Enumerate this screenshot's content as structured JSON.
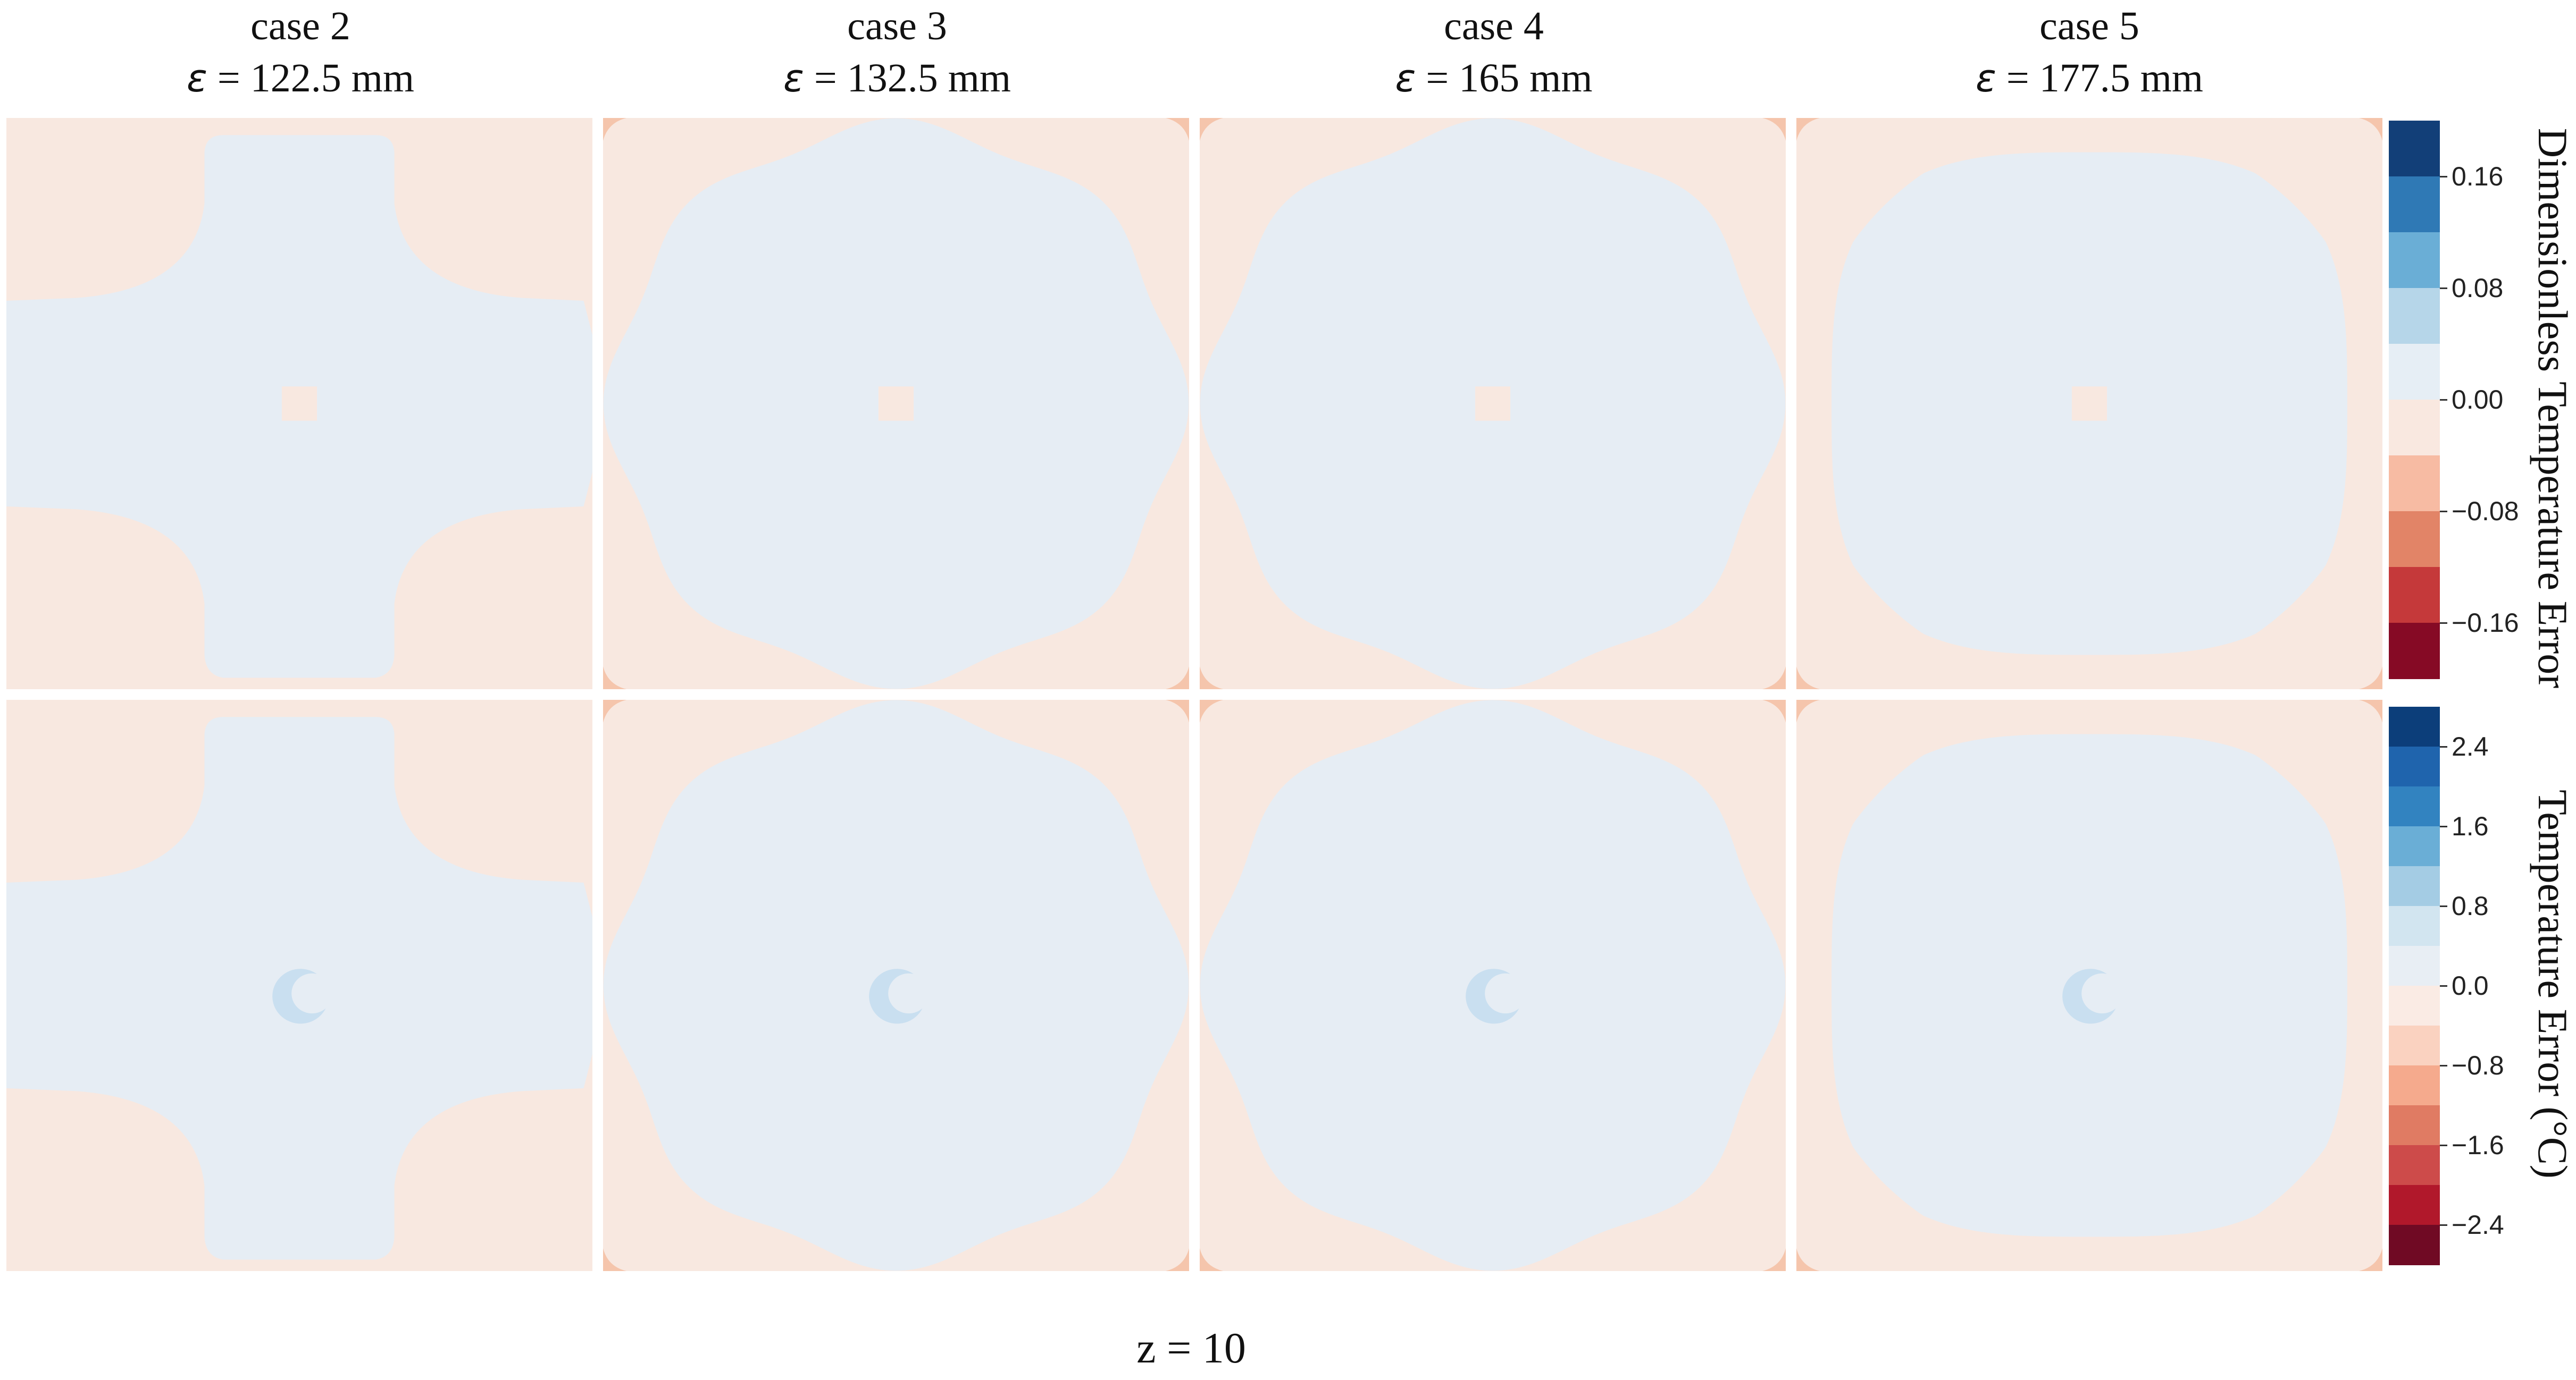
{
  "columns": [
    {
      "case": "case 2",
      "eps_symbol": "ε",
      "eps_value": " = 122.5 mm",
      "shape": "cross"
    },
    {
      "case": "case 3",
      "eps_symbol": "ε",
      "eps_value": " = 132.5 mm",
      "shape": "round"
    },
    {
      "case": "case 4",
      "eps_symbol": "ε",
      "eps_value": " = 165 mm",
      "shape": "round"
    },
    {
      "case": "case 5",
      "eps_symbol": "ε",
      "eps_value": " = 177.5 mm",
      "shape": "squircle"
    }
  ],
  "colorbars": [
    {
      "label": "Dimensionless Temperature Error",
      "colors": [
        "#123f78",
        "#2f79b5",
        "#6aaed6",
        "#b6d6e9",
        "#e6eef5",
        "#f9e8e0",
        "#f7bba3",
        "#e28467",
        "#c5393a",
        "#860a25"
      ],
      "ticks": [
        "0.16",
        "0.08",
        "0.00",
        "−0.08",
        "−0.16"
      ]
    },
    {
      "label": "Temperature Error (°C)",
      "colors": [
        "#0c3e7a",
        "#1f64ad",
        "#3283c0",
        "#6aaed6",
        "#a4cce4",
        "#d2e5f0",
        "#e8eef4",
        "#faebe4",
        "#fad2c0",
        "#f5aa8d",
        "#e07b63",
        "#cd4b4a",
        "#b1182b",
        "#700a24"
      ],
      "ticks": [
        "2.4",
        "1.6",
        "0.8",
        "0.0",
        "−0.8",
        "−1.6",
        "−2.4"
      ]
    }
  ],
  "colors": {
    "positive_fill": "#e6edf4",
    "negative_fill": "#f8e8e0",
    "corner_fill": "#f5c5ac",
    "ring_fill": "#c9dff0"
  },
  "footer": "z = 10"
}
